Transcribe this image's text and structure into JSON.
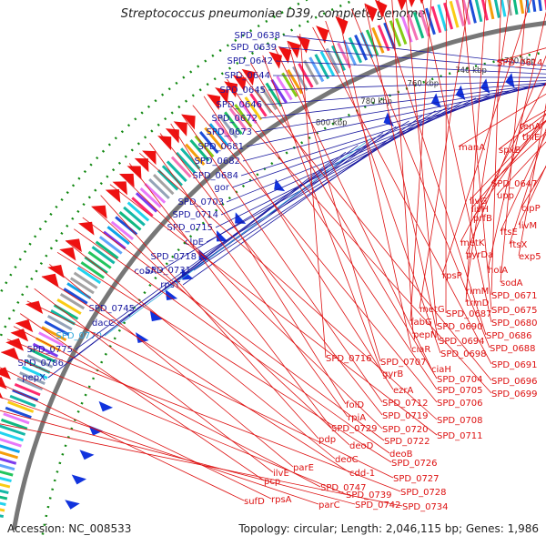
{
  "title": "Streptococcus pneumoniae D39, complete genome",
  "accession": "Accession: NC_008533",
  "summary": "Topology: circular; Length: 2,046,115 bp; Genes: 1,986",
  "colors": {
    "backbone": "#777777",
    "reverse_labels": "#1a1aa0",
    "highlight_label": "#33aadd",
    "forward_labels": "#dd1111",
    "gc_dots": "#118811"
  },
  "kbp_ticks": [
    "660 kbp",
    "680 kbp",
    "700 kbp",
    "720 kbp",
    "740 kbp",
    "760 kbp",
    "780 kbp",
    "800 kbp"
  ],
  "reverse_genes": [
    {
      "label": "SPD_0638"
    },
    {
      "label": "SPD_0639"
    },
    {
      "label": "SPD_0642"
    },
    {
      "label": "SPD_0644"
    },
    {
      "label": "SPD_0645"
    },
    {
      "label": "SPD_0646"
    },
    {
      "label": "SPD_0672"
    },
    {
      "label": "SPD_0673"
    },
    {
      "label": "SPD_0681"
    },
    {
      "label": "SPD_0682"
    },
    {
      "label": "SPD_0684"
    },
    {
      "label": "gor"
    },
    {
      "label": "SPD_0703"
    },
    {
      "label": "SPD_0714"
    },
    {
      "label": "SPD_0715"
    },
    {
      "label": "clpE"
    },
    {
      "label": "SPD_0718"
    },
    {
      "label": "SPD_0731"
    },
    {
      "label": "rpsT"
    },
    {
      "label": "coaA"
    },
    {
      "label": "SPD_0745"
    },
    {
      "label": "dacC"
    },
    {
      "label": "SPD_0770",
      "highlight": true
    },
    {
      "label": "SPD_0775"
    },
    {
      "label": "SPD_0786"
    },
    {
      "label": "pepX"
    }
  ],
  "forward_genes": [
    {
      "label": "SPD_0614"
    },
    {
      "label": "tenA"
    },
    {
      "label": "thiE"
    },
    {
      "label": "manA"
    },
    {
      "label": "spxB"
    },
    {
      "label": "SPD_0647"
    },
    {
      "label": "upp"
    },
    {
      "label": "livG"
    },
    {
      "label": "livH"
    },
    {
      "label": "clpP"
    },
    {
      "label": "prfB"
    },
    {
      "label": "livM"
    },
    {
      "label": "ftsE"
    },
    {
      "label": "metK"
    },
    {
      "label": "ftsX"
    },
    {
      "label": "pyrDa"
    },
    {
      "label": "exp5"
    },
    {
      "label": "holA"
    },
    {
      "label": "rpsP"
    },
    {
      "label": "sodA"
    },
    {
      "label": "rimM"
    },
    {
      "label": "SPD_0671"
    },
    {
      "label": "trmD"
    },
    {
      "label": "metG"
    },
    {
      "label": "SPD_0675"
    },
    {
      "label": "SPD_0687"
    },
    {
      "label": "fabG"
    },
    {
      "label": "SPD_0680"
    },
    {
      "label": "SPD_0690"
    },
    {
      "label": "pepN"
    },
    {
      "label": "SPD_0686"
    },
    {
      "label": "SPD_0694"
    },
    {
      "label": "SPD_0688"
    },
    {
      "label": "ciaR"
    },
    {
      "label": "SPD_0698"
    },
    {
      "label": "SPD_0691"
    },
    {
      "label": "SPD_0716"
    },
    {
      "label": "SPD_0707"
    },
    {
      "label": "ciaH"
    },
    {
      "label": "gyrB"
    },
    {
      "label": "SPD_0704"
    },
    {
      "label": "SPD_0696"
    },
    {
      "label": "SPD_0705"
    },
    {
      "label": "SPD_0699"
    },
    {
      "label": "ezrA"
    },
    {
      "label": "SPD_0706"
    },
    {
      "label": "SPD_0712"
    },
    {
      "label": "folD"
    },
    {
      "label": "SPD_0719"
    },
    {
      "label": "rpiA"
    },
    {
      "label": "SPD_0708"
    },
    {
      "label": "SPD_0729"
    },
    {
      "label": "SPD_0720"
    },
    {
      "label": "SPD_0711"
    },
    {
      "label": "pdp"
    },
    {
      "label": "deoD"
    },
    {
      "label": "SPD_0722"
    },
    {
      "label": "deoB"
    },
    {
      "label": "deoC"
    },
    {
      "label": "SPD_0726"
    },
    {
      "label": "parE"
    },
    {
      "label": "cdd-1"
    },
    {
      "label": "ilvE"
    },
    {
      "label": "SPD_0727"
    },
    {
      "label": "pcp"
    },
    {
      "label": "SPD_0747"
    },
    {
      "label": "SPD_0728"
    },
    {
      "label": "SPD_0739"
    },
    {
      "label": "rpsA"
    },
    {
      "label": "sufD"
    },
    {
      "label": "parC"
    },
    {
      "label": "SPD_0742"
    },
    {
      "label": "SPD_0734"
    }
  ]
}
